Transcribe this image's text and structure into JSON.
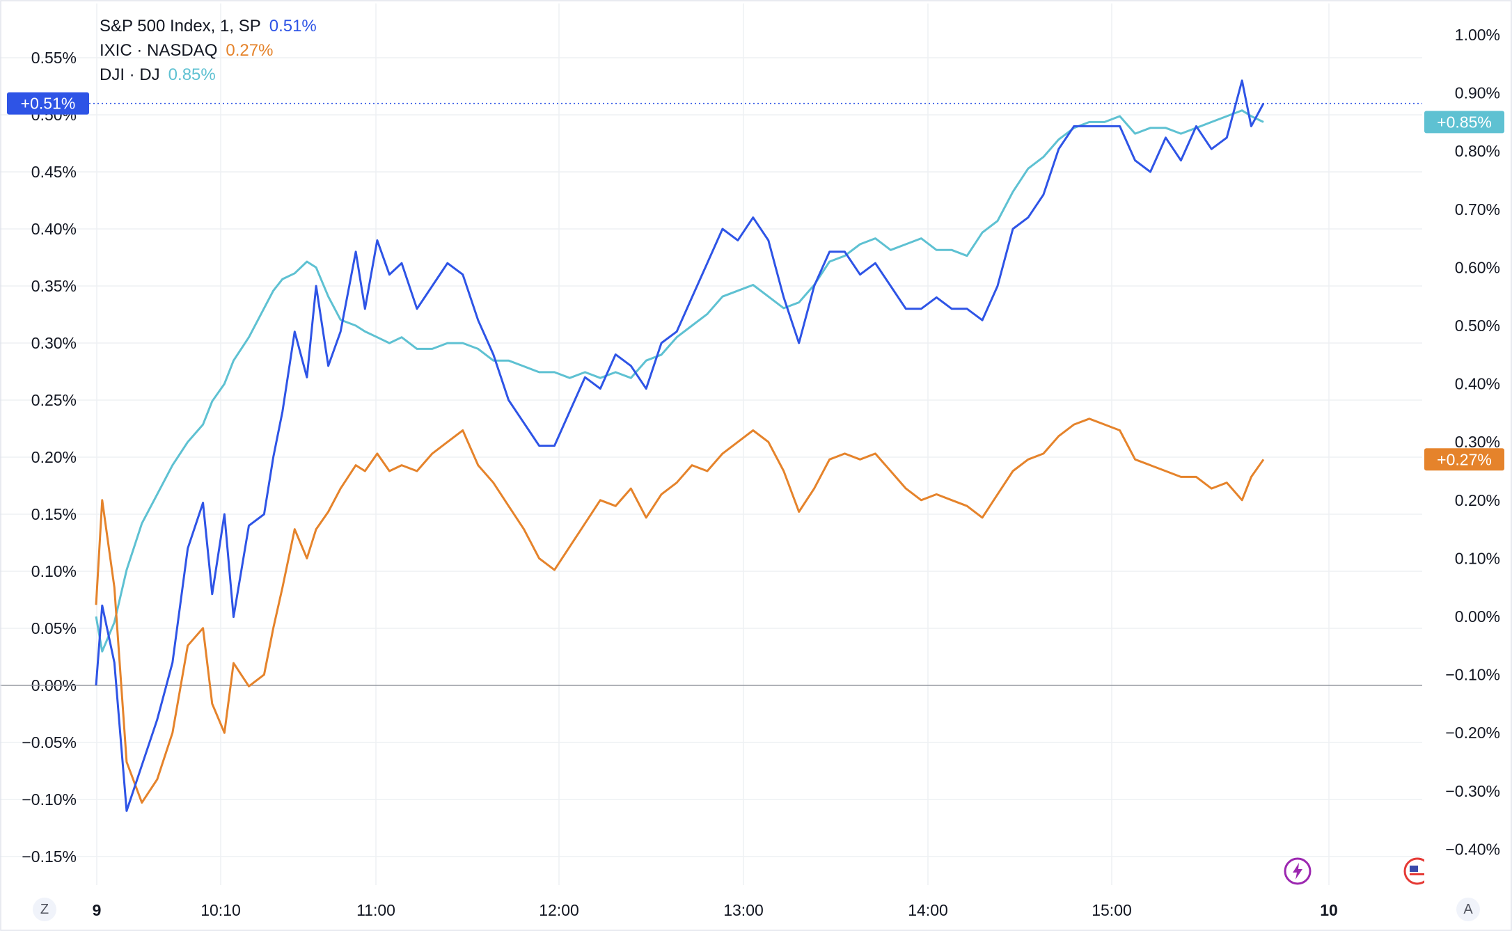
{
  "legend": {
    "sp500": {
      "label": "S&P 500 Index, 1, SP",
      "value": "0.51%"
    },
    "ixic": {
      "label": "IXIC · NASDAQ",
      "value": "0.27%"
    },
    "dji": {
      "label": "DJI · DJ",
      "value": "0.85%"
    }
  },
  "corner_buttons": {
    "left": "Z",
    "right": "A"
  },
  "colors": {
    "sp500": "#2e54e6",
    "ixic": "#e5832b",
    "dji": "#5ec1d2",
    "grid": "#eef0f3",
    "zero": "#9598a1",
    "text": "#131722"
  },
  "chart_data": {
    "type": "line",
    "x_ticks": [
      "9",
      "10:10",
      "11:00",
      "12:00",
      "13:00",
      "14:00",
      "15:00",
      "10"
    ],
    "x_range": [
      "09:30",
      "16:15"
    ],
    "left_axis": {
      "ticks": [
        "0.55%",
        "0.50%",
        "0.45%",
        "0.40%",
        "0.35%",
        "0.30%",
        "0.25%",
        "0.20%",
        "0.15%",
        "0.10%",
        "0.05%",
        "0.00%",
        "−0.05%",
        "−0.10%",
        "−0.15%"
      ],
      "range": [
        -0.15,
        0.55
      ]
    },
    "right_axis": {
      "ticks": [
        "1.00%",
        "0.90%",
        "0.80%",
        "0.70%",
        "0.60%",
        "0.50%",
        "0.40%",
        "0.30%",
        "0.20%",
        "0.10%",
        "0.00%",
        "−0.10%",
        "−0.20%",
        "−0.30%",
        "−0.40%"
      ],
      "range": [
        -0.4,
        1.0
      ]
    },
    "series": [
      {
        "name": "S&P 500 Index, 1, SP",
        "axis": "left",
        "last_label": "+0.51%",
        "points": [
          [
            "09:30",
            0.0
          ],
          [
            "09:32",
            0.07
          ],
          [
            "09:36",
            0.02
          ],
          [
            "09:40",
            -0.11
          ],
          [
            "09:45",
            -0.07
          ],
          [
            "09:50",
            -0.03
          ],
          [
            "09:55",
            0.02
          ],
          [
            "10:00",
            0.12
          ],
          [
            "10:05",
            0.16
          ],
          [
            "10:08",
            0.08
          ],
          [
            "10:12",
            0.15
          ],
          [
            "10:15",
            0.06
          ],
          [
            "10:20",
            0.14
          ],
          [
            "10:25",
            0.15
          ],
          [
            "10:28",
            0.2
          ],
          [
            "10:31",
            0.24
          ],
          [
            "10:35",
            0.31
          ],
          [
            "10:39",
            0.27
          ],
          [
            "10:42",
            0.35
          ],
          [
            "10:46",
            0.28
          ],
          [
            "10:50",
            0.31
          ],
          [
            "10:55",
            0.38
          ],
          [
            "10:58",
            0.33
          ],
          [
            "11:02",
            0.39
          ],
          [
            "11:06",
            0.36
          ],
          [
            "11:10",
            0.37
          ],
          [
            "11:15",
            0.33
          ],
          [
            "11:20",
            0.35
          ],
          [
            "11:25",
            0.37
          ],
          [
            "11:30",
            0.36
          ],
          [
            "11:35",
            0.32
          ],
          [
            "11:40",
            0.29
          ],
          [
            "11:45",
            0.25
          ],
          [
            "11:50",
            0.23
          ],
          [
            "11:55",
            0.21
          ],
          [
            "12:00",
            0.21
          ],
          [
            "12:05",
            0.24
          ],
          [
            "12:10",
            0.27
          ],
          [
            "12:15",
            0.26
          ],
          [
            "12:20",
            0.29
          ],
          [
            "12:25",
            0.28
          ],
          [
            "12:30",
            0.26
          ],
          [
            "12:35",
            0.3
          ],
          [
            "12:40",
            0.31
          ],
          [
            "12:45",
            0.34
          ],
          [
            "12:50",
            0.37
          ],
          [
            "12:55",
            0.4
          ],
          [
            "13:00",
            0.39
          ],
          [
            "13:05",
            0.41
          ],
          [
            "13:10",
            0.39
          ],
          [
            "13:15",
            0.34
          ],
          [
            "13:20",
            0.3
          ],
          [
            "13:25",
            0.35
          ],
          [
            "13:30",
            0.38
          ],
          [
            "13:35",
            0.38
          ],
          [
            "13:40",
            0.36
          ],
          [
            "13:45",
            0.37
          ],
          [
            "13:50",
            0.35
          ],
          [
            "13:55",
            0.33
          ],
          [
            "14:00",
            0.33
          ],
          [
            "14:05",
            0.34
          ],
          [
            "14:10",
            0.33
          ],
          [
            "14:15",
            0.33
          ],
          [
            "14:20",
            0.32
          ],
          [
            "14:25",
            0.35
          ],
          [
            "14:30",
            0.4
          ],
          [
            "14:35",
            0.41
          ],
          [
            "14:40",
            0.43
          ],
          [
            "14:45",
            0.47
          ],
          [
            "14:50",
            0.49
          ],
          [
            "14:55",
            0.49
          ],
          [
            "15:00",
            0.49
          ],
          [
            "15:05",
            0.49
          ],
          [
            "15:10",
            0.46
          ],
          [
            "15:15",
            0.45
          ],
          [
            "15:20",
            0.48
          ],
          [
            "15:25",
            0.46
          ],
          [
            "15:30",
            0.49
          ],
          [
            "15:35",
            0.47
          ],
          [
            "15:40",
            0.48
          ],
          [
            "15:45",
            0.53
          ],
          [
            "15:48",
            0.49
          ],
          [
            "15:52",
            0.51
          ]
        ]
      },
      {
        "name": "IXIC · NASDAQ",
        "axis": "right",
        "last_label": "+0.27%",
        "points": [
          [
            "09:30",
            0.02
          ],
          [
            "09:32",
            0.2
          ],
          [
            "09:36",
            0.05
          ],
          [
            "09:40",
            -0.25
          ],
          [
            "09:45",
            -0.32
          ],
          [
            "09:50",
            -0.28
          ],
          [
            "09:55",
            -0.2
          ],
          [
            "10:00",
            -0.05
          ],
          [
            "10:05",
            -0.02
          ],
          [
            "10:08",
            -0.15
          ],
          [
            "10:12",
            -0.2
          ],
          [
            "10:15",
            -0.08
          ],
          [
            "10:20",
            -0.12
          ],
          [
            "10:25",
            -0.1
          ],
          [
            "10:28",
            -0.02
          ],
          [
            "10:31",
            0.05
          ],
          [
            "10:35",
            0.15
          ],
          [
            "10:39",
            0.1
          ],
          [
            "10:42",
            0.15
          ],
          [
            "10:46",
            0.18
          ],
          [
            "10:50",
            0.22
          ],
          [
            "10:55",
            0.26
          ],
          [
            "10:58",
            0.25
          ],
          [
            "11:02",
            0.28
          ],
          [
            "11:06",
            0.25
          ],
          [
            "11:10",
            0.26
          ],
          [
            "11:15",
            0.25
          ],
          [
            "11:20",
            0.28
          ],
          [
            "11:25",
            0.3
          ],
          [
            "11:30",
            0.32
          ],
          [
            "11:35",
            0.26
          ],
          [
            "11:40",
            0.23
          ],
          [
            "11:45",
            0.19
          ],
          [
            "11:50",
            0.15
          ],
          [
            "11:55",
            0.1
          ],
          [
            "12:00",
            0.08
          ],
          [
            "12:05",
            0.12
          ],
          [
            "12:10",
            0.16
          ],
          [
            "12:15",
            0.2
          ],
          [
            "12:20",
            0.19
          ],
          [
            "12:25",
            0.22
          ],
          [
            "12:30",
            0.17
          ],
          [
            "12:35",
            0.21
          ],
          [
            "12:40",
            0.23
          ],
          [
            "12:45",
            0.26
          ],
          [
            "12:50",
            0.25
          ],
          [
            "12:55",
            0.28
          ],
          [
            "13:00",
            0.3
          ],
          [
            "13:05",
            0.32
          ],
          [
            "13:10",
            0.3
          ],
          [
            "13:15",
            0.25
          ],
          [
            "13:20",
            0.18
          ],
          [
            "13:25",
            0.22
          ],
          [
            "13:30",
            0.27
          ],
          [
            "13:35",
            0.28
          ],
          [
            "13:40",
            0.27
          ],
          [
            "13:45",
            0.28
          ],
          [
            "13:50",
            0.25
          ],
          [
            "13:55",
            0.22
          ],
          [
            "14:00",
            0.2
          ],
          [
            "14:05",
            0.21
          ],
          [
            "14:10",
            0.2
          ],
          [
            "14:15",
            0.19
          ],
          [
            "14:20",
            0.17
          ],
          [
            "14:25",
            0.21
          ],
          [
            "14:30",
            0.25
          ],
          [
            "14:35",
            0.27
          ],
          [
            "14:40",
            0.28
          ],
          [
            "14:45",
            0.31
          ],
          [
            "14:50",
            0.33
          ],
          [
            "14:55",
            0.34
          ],
          [
            "15:00",
            0.33
          ],
          [
            "15:05",
            0.32
          ],
          [
            "15:10",
            0.27
          ],
          [
            "15:15",
            0.26
          ],
          [
            "15:20",
            0.25
          ],
          [
            "15:25",
            0.24
          ],
          [
            "15:30",
            0.24
          ],
          [
            "15:35",
            0.22
          ],
          [
            "15:40",
            0.23
          ],
          [
            "15:45",
            0.2
          ],
          [
            "15:48",
            0.24
          ],
          [
            "15:52",
            0.27
          ]
        ]
      },
      {
        "name": "DJI · DJ",
        "axis": "right",
        "last_label": "+0.85%",
        "points": [
          [
            "09:30",
            0.0
          ],
          [
            "09:32",
            -0.06
          ],
          [
            "09:36",
            -0.01
          ],
          [
            "09:40",
            0.08
          ],
          [
            "09:45",
            0.16
          ],
          [
            "09:50",
            0.21
          ],
          [
            "09:55",
            0.26
          ],
          [
            "10:00",
            0.3
          ],
          [
            "10:05",
            0.33
          ],
          [
            "10:08",
            0.37
          ],
          [
            "10:12",
            0.4
          ],
          [
            "10:15",
            0.44
          ],
          [
            "10:20",
            0.48
          ],
          [
            "10:25",
            0.53
          ],
          [
            "10:28",
            0.56
          ],
          [
            "10:31",
            0.58
          ],
          [
            "10:35",
            0.59
          ],
          [
            "10:39",
            0.61
          ],
          [
            "10:42",
            0.6
          ],
          [
            "10:46",
            0.55
          ],
          [
            "10:50",
            0.51
          ],
          [
            "10:55",
            0.5
          ],
          [
            "10:58",
            0.49
          ],
          [
            "11:02",
            0.48
          ],
          [
            "11:06",
            0.47
          ],
          [
            "11:10",
            0.48
          ],
          [
            "11:15",
            0.46
          ],
          [
            "11:20",
            0.46
          ],
          [
            "11:25",
            0.47
          ],
          [
            "11:30",
            0.47
          ],
          [
            "11:35",
            0.46
          ],
          [
            "11:40",
            0.44
          ],
          [
            "11:45",
            0.44
          ],
          [
            "11:50",
            0.43
          ],
          [
            "11:55",
            0.42
          ],
          [
            "12:00",
            0.42
          ],
          [
            "12:05",
            0.41
          ],
          [
            "12:10",
            0.42
          ],
          [
            "12:15",
            0.41
          ],
          [
            "12:20",
            0.42
          ],
          [
            "12:25",
            0.41
          ],
          [
            "12:30",
            0.44
          ],
          [
            "12:35",
            0.45
          ],
          [
            "12:40",
            0.48
          ],
          [
            "12:45",
            0.5
          ],
          [
            "12:50",
            0.52
          ],
          [
            "12:55",
            0.55
          ],
          [
            "13:00",
            0.56
          ],
          [
            "13:05",
            0.57
          ],
          [
            "13:10",
            0.55
          ],
          [
            "13:15",
            0.53
          ],
          [
            "13:20",
            0.54
          ],
          [
            "13:25",
            0.57
          ],
          [
            "13:30",
            0.61
          ],
          [
            "13:35",
            0.62
          ],
          [
            "13:40",
            0.64
          ],
          [
            "13:45",
            0.65
          ],
          [
            "13:50",
            0.63
          ],
          [
            "13:55",
            0.64
          ],
          [
            "14:00",
            0.65
          ],
          [
            "14:05",
            0.63
          ],
          [
            "14:10",
            0.63
          ],
          [
            "14:15",
            0.62
          ],
          [
            "14:20",
            0.66
          ],
          [
            "14:25",
            0.68
          ],
          [
            "14:30",
            0.73
          ],
          [
            "14:35",
            0.77
          ],
          [
            "14:40",
            0.79
          ],
          [
            "14:45",
            0.82
          ],
          [
            "14:50",
            0.84
          ],
          [
            "14:55",
            0.85
          ],
          [
            "15:00",
            0.85
          ],
          [
            "15:05",
            0.86
          ],
          [
            "15:10",
            0.83
          ],
          [
            "15:15",
            0.84
          ],
          [
            "15:20",
            0.84
          ],
          [
            "15:25",
            0.83
          ],
          [
            "15:30",
            0.84
          ],
          [
            "15:35",
            0.85
          ],
          [
            "15:40",
            0.86
          ],
          [
            "15:45",
            0.87
          ],
          [
            "15:48",
            0.86
          ],
          [
            "15:52",
            0.85
          ]
        ]
      }
    ]
  }
}
